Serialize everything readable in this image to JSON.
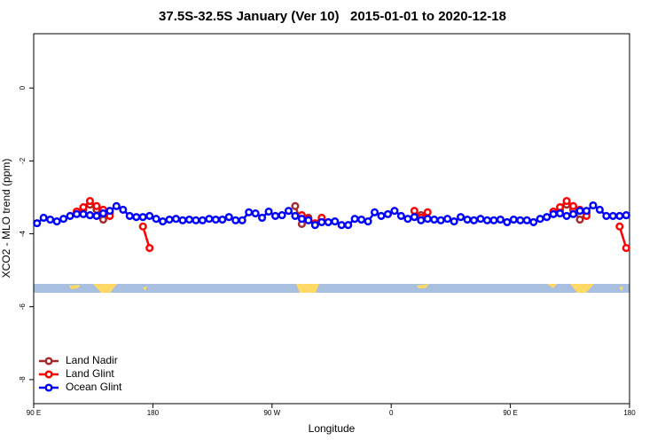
{
  "chart_data": {
    "type": "line",
    "title": "37.5S-32.5S January (Ver 10)   2015-01-01 to 2020-12-18",
    "xlabel": "Longitude",
    "ylabel": "XCO2 - MLO trend (ppm)",
    "xlim": [
      90,
      540
    ],
    "ylim": [
      -8.66,
      1.49
    ],
    "xticks": [
      {
        "value": 90,
        "label": "90 E"
      },
      180,
      {
        "value": 270,
        "label": "90 W"
      },
      {
        "value": 360,
        "label": "0"
      },
      {
        "value": 450,
        "label": "90 E"
      },
      {
        "value": 540,
        "label": "180"
      }
    ],
    "yticks": [
      -8,
      -6,
      -4,
      -2,
      0
    ],
    "legend": "bottomleft",
    "series": [
      {
        "name": "Land Nadir",
        "color": "#a52a2a",
        "x": [
          122.5,
          127.5,
          132.5,
          137.5,
          142.5,
          147.5,
          287.5,
          292.5,
          297.5,
          382.5,
          482.5,
          487.5,
          492.5,
          497.5,
          502.5,
          507.5
        ],
        "values": [
          -3.39,
          -3.34,
          -3.2,
          -3.34,
          -3.61,
          -3.44,
          -3.24,
          -3.73,
          -3.56,
          -3.49,
          -3.39,
          -3.34,
          -3.2,
          -3.34,
          -3.61,
          -3.44
        ]
      },
      {
        "name": "Land Glint",
        "color": "#ff0000",
        "x": [
          122.5,
          127.5,
          132.5,
          137.5,
          142.5,
          147.5,
          172.5,
          177.5,
          292.5,
          297.5,
          302.5,
          307.5,
          377.5,
          382.5,
          387.5,
          482.5,
          487.5,
          492.5,
          497.5,
          502.5,
          507.5,
          532.5,
          537.5
        ],
        "values": [
          -3.39,
          -3.27,
          -3.1,
          -3.24,
          -3.34,
          -3.51,
          -3.8,
          -4.39,
          -3.49,
          -3.61,
          -3.71,
          -3.56,
          -3.37,
          -3.56,
          -3.41,
          -3.39,
          -3.27,
          -3.1,
          -3.24,
          -3.34,
          -3.51,
          -3.8,
          -4.39
        ]
      },
      {
        "name": "Ocean Glint",
        "color": "#0000ff",
        "x": [
          92.5,
          97.5,
          102.5,
          107.5,
          112.5,
          117.5,
          122.5,
          127.5,
          132.5,
          137.5,
          142.5,
          147.5,
          152.5,
          157.5,
          162.5,
          167.5,
          172.5,
          177.5,
          182.5,
          187.5,
          192.5,
          197.5,
          202.5,
          207.5,
          212.5,
          217.5,
          222.5,
          227.5,
          232.5,
          237.5,
          242.5,
          247.5,
          252.5,
          257.5,
          262.5,
          267.5,
          272.5,
          277.5,
          282.5,
          287.5,
          292.5,
          297.5,
          302.5,
          307.5,
          312.5,
          317.5,
          322.5,
          327.5,
          332.5,
          337.5,
          342.5,
          347.5,
          352.5,
          357.5,
          362.5,
          367.5,
          372.5,
          377.5,
          382.5,
          387.5,
          392.5,
          397.5,
          402.5,
          407.5,
          412.5,
          417.5,
          422.5,
          427.5,
          432.5,
          437.5,
          442.5,
          447.5,
          452.5,
          457.5,
          462.5,
          467.5,
          472.5,
          477.5,
          482.5,
          487.5,
          492.5,
          497.5,
          502.5,
          507.5,
          512.5,
          517.5,
          522.5,
          527.5,
          532.5,
          537.5
        ],
        "values": [
          -3.71,
          -3.56,
          -3.61,
          -3.66,
          -3.59,
          -3.51,
          -3.46,
          -3.46,
          -3.49,
          -3.51,
          -3.44,
          -3.37,
          -3.24,
          -3.34,
          -3.51,
          -3.54,
          -3.54,
          -3.51,
          -3.59,
          -3.66,
          -3.61,
          -3.59,
          -3.63,
          -3.61,
          -3.63,
          -3.63,
          -3.59,
          -3.61,
          -3.61,
          -3.54,
          -3.63,
          -3.63,
          -3.41,
          -3.44,
          -3.56,
          -3.39,
          -3.51,
          -3.49,
          -3.37,
          -3.51,
          -3.59,
          -3.63,
          -3.76,
          -3.68,
          -3.68,
          -3.66,
          -3.76,
          -3.76,
          -3.59,
          -3.61,
          -3.66,
          -3.41,
          -3.51,
          -3.46,
          -3.37,
          -3.51,
          -3.59,
          -3.54,
          -3.63,
          -3.59,
          -3.61,
          -3.63,
          -3.59,
          -3.66,
          -3.54,
          -3.61,
          -3.63,
          -3.59,
          -3.63,
          -3.63,
          -3.61,
          -3.68,
          -3.61,
          -3.63,
          -3.63,
          -3.68,
          -3.59,
          -3.54,
          -3.46,
          -3.44,
          -3.51,
          -3.46,
          -3.37,
          -3.37,
          -3.22,
          -3.34,
          -3.51,
          -3.51,
          -3.51,
          -3.49
        ]
      }
    ]
  }
}
